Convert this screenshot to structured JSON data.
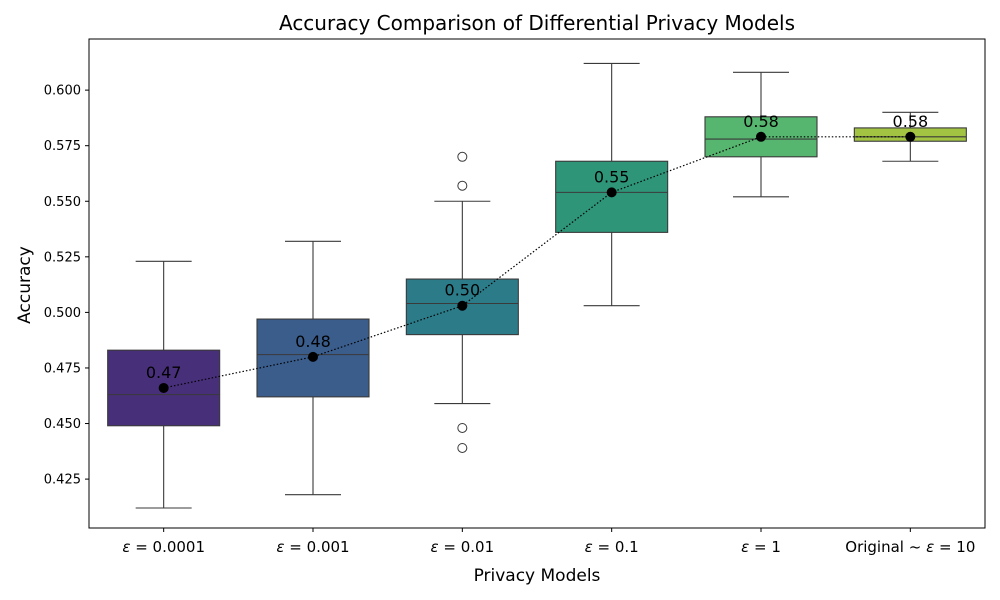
{
  "chart_data": {
    "type": "box",
    "title": "Accuracy Comparison of Differential Privacy Models",
    "xlabel": "Privacy Models",
    "ylabel": "Accuracy",
    "ylim": [
      0.403,
      0.623
    ],
    "yticks": [
      0.425,
      0.45,
      0.475,
      0.5,
      0.525,
      0.55,
      0.575,
      0.6
    ],
    "ytick_labels": [
      "0.425",
      "0.450",
      "0.475",
      "0.500",
      "0.525",
      "0.550",
      "0.575",
      "0.600"
    ],
    "grid": false,
    "categories": [
      {
        "prefix": "",
        "eps": "ε",
        "suffix": " = 0.0001"
      },
      {
        "prefix": "",
        "eps": "ε",
        "suffix": " = 0.001"
      },
      {
        "prefix": "",
        "eps": "ε",
        "suffix": " = 0.01"
      },
      {
        "prefix": "",
        "eps": "ε",
        "suffix": " = 0.1"
      },
      {
        "prefix": "",
        "eps": "ε",
        "suffix": " = 1"
      },
      {
        "prefix": "Original ~ ",
        "eps": "ε",
        "suffix": " = 10"
      }
    ],
    "boxes": [
      {
        "whislo": 0.412,
        "q1": 0.449,
        "med": 0.463,
        "q3": 0.483,
        "whishi": 0.523,
        "fliers": [],
        "mean": 0.466,
        "mean_label": "0.47",
        "color": "#482f7a"
      },
      {
        "whislo": 0.418,
        "q1": 0.462,
        "med": 0.481,
        "q3": 0.497,
        "whishi": 0.532,
        "fliers": [],
        "mean": 0.48,
        "mean_label": "0.48",
        "color": "#3a5d8c"
      },
      {
        "whislo": 0.459,
        "q1": 0.49,
        "med": 0.504,
        "q3": 0.515,
        "whishi": 0.55,
        "fliers": [
          0.57,
          0.557,
          0.448,
          0.439
        ],
        "mean": 0.503,
        "mean_label": "0.50",
        "color": "#2c7b89"
      },
      {
        "whislo": 0.503,
        "q1": 0.536,
        "med": 0.554,
        "q3": 0.568,
        "whishi": 0.612,
        "fliers": [],
        "mean": 0.554,
        "mean_label": "0.55",
        "color": "#2e9579"
      },
      {
        "whislo": 0.552,
        "q1": 0.57,
        "med": 0.578,
        "q3": 0.588,
        "whishi": 0.608,
        "fliers": [],
        "mean": 0.579,
        "mean_label": "0.58",
        "color": "#56b56e"
      },
      {
        "whislo": 0.568,
        "q1": 0.577,
        "med": 0.579,
        "q3": 0.583,
        "whishi": 0.59,
        "fliers": [],
        "mean": 0.579,
        "mean_label": "0.58",
        "color": "#a2c442"
      }
    ],
    "mean_line": {
      "style": "dotted",
      "color": "#000000"
    }
  }
}
